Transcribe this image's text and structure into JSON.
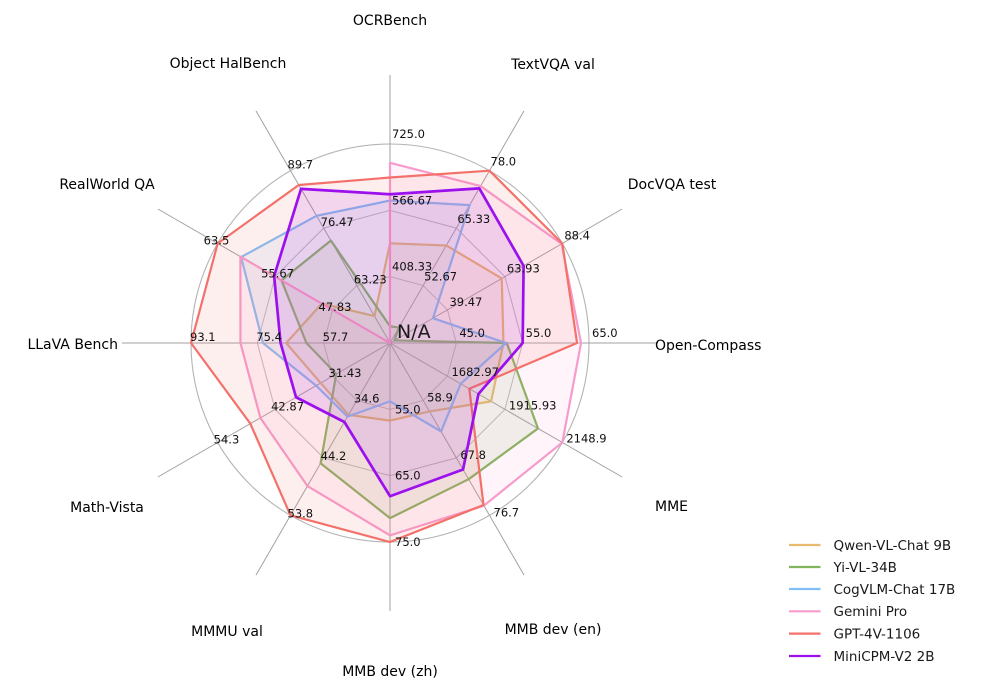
{
  "chart_data": {
    "type": "radar",
    "title": "",
    "center_label": "N/A",
    "grid": true,
    "rings": 3,
    "legend_position": "lower right",
    "na_policy": "null values are plotted at the center (N/A)",
    "axes": [
      {
        "label": "OCRBench",
        "min": 250,
        "max": 725,
        "ticks": [
          "725.0",
          "566.67",
          "408.33"
        ]
      },
      {
        "label": "TextVQA val",
        "min": 40,
        "max": 78,
        "ticks": [
          "78.0",
          "65.33",
          "52.67"
        ]
      },
      {
        "label": "DocVQA test",
        "min": 15,
        "max": 88.4,
        "ticks": [
          "88.4",
          "63.93",
          "39.47"
        ]
      },
      {
        "label": "Open-Compass",
        "min": 35,
        "max": 65,
        "ticks": [
          "65.0",
          "55.0",
          "45.0"
        ]
      },
      {
        "label": "MME",
        "min": 1450,
        "max": 2148.9,
        "ticks": [
          "2148.9",
          "1915.93",
          "1682.97"
        ]
      },
      {
        "label": "MMB dev (en)",
        "min": 50,
        "max": 76.7,
        "ticks": [
          "76.7",
          "67.8",
          "58.9"
        ]
      },
      {
        "label": "MMB dev (zh)",
        "min": 45,
        "max": 75,
        "ticks": [
          "75.0",
          "65.0",
          "55.0"
        ]
      },
      {
        "label": "MMMU val",
        "min": 25,
        "max": 53.8,
        "ticks": [
          "53.8",
          "44.2",
          "34.6"
        ]
      },
      {
        "label": "Math-Vista",
        "min": 20,
        "max": 54.3,
        "ticks": [
          "54.3",
          "42.87",
          "31.43"
        ]
      },
      {
        "label": "LLaVA Bench",
        "min": 40,
        "max": 93.1,
        "ticks": [
          "93.1",
          "75.4",
          "57.7"
        ]
      },
      {
        "label": "RealWorld QA",
        "min": 40,
        "max": 63.5,
        "ticks": [
          "63.5",
          "55.67",
          "47.83"
        ]
      },
      {
        "label": "Object HalBench",
        "min": 50,
        "max": 89.7,
        "ticks": [
          "89.7",
          "76.47",
          "63.23"
        ]
      }
    ],
    "series": [
      {
        "name": "Qwen-VL-Chat 9B",
        "color": "#e8bb6e",
        "values": [
          488,
          61.5,
          62.6,
          52.1,
          1860.0,
          60.6,
          56.7,
          37.0,
          33.8,
          67.7,
          49.3,
          56.2
        ]
      },
      {
        "name": "Yi-VL-34B",
        "color": "#83b35c",
        "values": [
          290,
          43.4,
          16.9,
          52.6,
          2050.2,
          71.1,
          71.4,
          45.1,
          30.7,
          62.3,
          54.8,
          73.6
        ]
      },
      {
        "name": "CogVLM-Chat 17B",
        "color": "#81c0f5",
        "values": [
          590,
          70.4,
          33.3,
          52.5,
          1736.6,
          63.7,
          53.8,
          37.3,
          34.7,
          73.9,
          60.3,
          79.3
        ]
      },
      {
        "name": "Gemini Pro",
        "color": "#f79bcc",
        "values": [
          680,
          74.6,
          88.1,
          63.8,
          2148.9,
          75.2,
          74.0,
          48.9,
          45.8,
          79.9,
          60.4,
          null
        ]
      },
      {
        "name": "GPT-4V-1106",
        "color": "#f3716a",
        "values": [
          645,
          78.0,
          88.4,
          63.2,
          1771.5,
          75.1,
          75.0,
          53.8,
          47.8,
          93.1,
          63.5,
          86.4
        ]
      },
      {
        "name": "MiniCPM-V2 2B",
        "color": "#9b10ec",
        "values": [
          605,
          74.1,
          71.9,
          55.0,
          1808.6,
          69.6,
          68.1,
          38.2,
          38.7,
          69.2,
          55.8,
          85.5
        ]
      }
    ]
  }
}
